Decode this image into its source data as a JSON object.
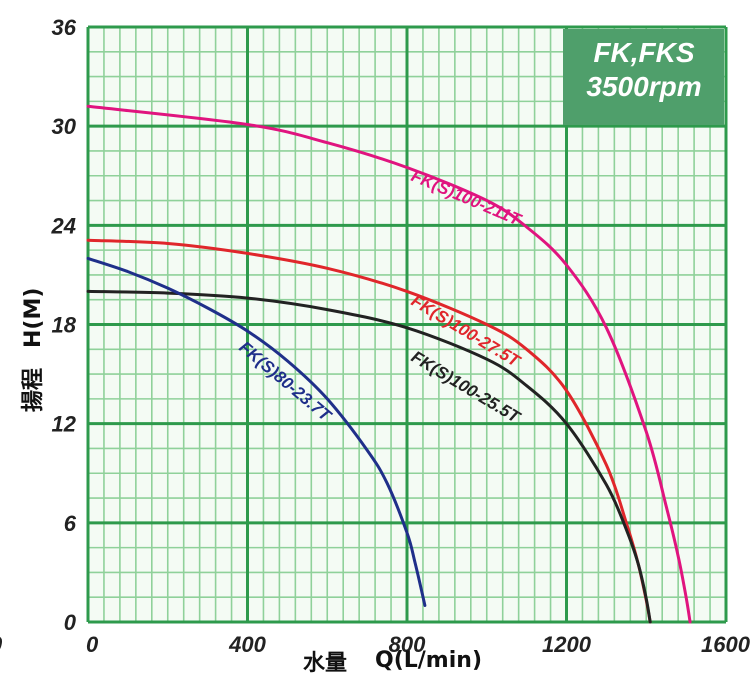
{
  "chart_data": {
    "type": "line",
    "title": "",
    "badge": [
      "FK,FKS",
      "3500rpm"
    ],
    "xlabel_cjk": "水量",
    "xlabel": "Q(L/min)",
    "ylabel_cjk": "揚程",
    "ylabel": "H(M)",
    "xlim": [
      0,
      1600
    ],
    "ylim": [
      0,
      36
    ],
    "xticks": [
      "0",
      "400",
      "800",
      "1200",
      "1600"
    ],
    "yticks": [
      "0",
      "6",
      "12",
      "18",
      "24",
      "30",
      "36"
    ],
    "grid": true,
    "colors": {
      "grid_minor": "#8fd19a",
      "grid_major": "#2e9a4c",
      "background": "#f4fbf4",
      "badge": "#4f9f6b"
    },
    "series": [
      {
        "name": "FK(S)100-211T",
        "color": "#e0147f",
        "x": [
          0,
          400,
          600,
          800,
          1000,
          1100,
          1200,
          1300,
          1400,
          1450,
          1480,
          1500,
          1510
        ],
        "y": [
          31.2,
          30.1,
          29.0,
          27.5,
          25.5,
          23.9,
          21.6,
          17.8,
          11.5,
          7.0,
          4.0,
          1.5,
          0
        ]
      },
      {
        "name": "FK(S)100-27.5T",
        "color": "#e0262b",
        "x": [
          0,
          200,
          400,
          600,
          800,
          1000,
          1100,
          1200,
          1300,
          1350,
          1380,
          1400,
          1410
        ],
        "y": [
          23.1,
          22.9,
          22.3,
          21.4,
          20.0,
          18.0,
          16.5,
          14.0,
          9.5,
          6.0,
          3.5,
          1.3,
          0
        ]
      },
      {
        "name": "FK(S)100-25.5T",
        "color": "#222222",
        "x": [
          0,
          200,
          400,
          600,
          800,
          1000,
          1100,
          1200,
          1300,
          1350,
          1380,
          1400,
          1410
        ],
        "y": [
          20.0,
          19.9,
          19.6,
          18.9,
          17.8,
          15.9,
          14.3,
          12.0,
          8.3,
          5.6,
          3.5,
          1.4,
          0
        ]
      },
      {
        "name": "FK(S)80-23.7T",
        "color": "#1f2f8a",
        "x": [
          0,
          100,
          200,
          300,
          400,
          500,
          600,
          700,
          750,
          800,
          820,
          845
        ],
        "y": [
          22.0,
          21.2,
          20.2,
          19.0,
          17.6,
          15.8,
          13.5,
          10.4,
          8.4,
          5.4,
          3.6,
          1.0
        ]
      }
    ]
  }
}
